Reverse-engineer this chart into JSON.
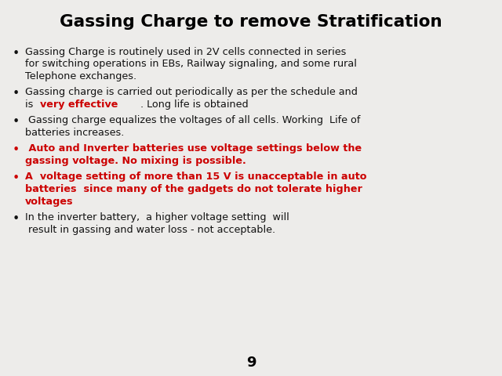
{
  "title": "Gassing Charge to remove Stratification",
  "background_color": "#edecea",
  "page_number": "9",
  "title_fontsize": 15.5,
  "body_fontsize": 9.2,
  "bullet_blocks": [
    {
      "bullet_color": "#111111",
      "lines": [
        [
          {
            "text": "Gassing Charge is routinely used in 2V cells connected in series",
            "color": "#111111",
            "bold": false
          }
        ],
        [
          {
            "text": "for switching operations in EBs, Railway signaling, and some rural",
            "color": "#111111",
            "bold": false
          }
        ],
        [
          {
            "text": "Telephone exchanges.",
            "color": "#111111",
            "bold": false
          }
        ]
      ]
    },
    {
      "bullet_color": "#111111",
      "lines": [
        [
          {
            "text": "Gassing charge is carried out periodically as per the schedule and",
            "color": "#111111",
            "bold": false
          }
        ],
        [
          {
            "text": "is ",
            "color": "#111111",
            "bold": false
          },
          {
            "text": "very effective",
            "color": "#cc0000",
            "bold": true
          },
          {
            "text": ". Long life is obtained",
            "color": "#111111",
            "bold": false
          }
        ]
      ]
    },
    {
      "bullet_color": "#111111",
      "lines": [
        [
          {
            "text": " Gassing charge equalizes the voltages of all cells. Working  Life of",
            "color": "#111111",
            "bold": false
          }
        ],
        [
          {
            "text": "batteries increases.",
            "color": "#111111",
            "bold": false
          }
        ]
      ]
    },
    {
      "bullet_color": "#cc0000",
      "lines": [
        [
          {
            "text": " Auto and Inverter batteries use voltage settings below the",
            "color": "#cc0000",
            "bold": true
          }
        ],
        [
          {
            "text": "gassing voltage. No mixing is possible.",
            "color": "#cc0000",
            "bold": true
          }
        ]
      ]
    },
    {
      "bullet_color": "#cc0000",
      "lines": [
        [
          {
            "text": "A  voltage setting of more than 15 V is unacceptable in auto",
            "color": "#cc0000",
            "bold": true
          }
        ],
        [
          {
            "text": "batteries  since many of the gadgets do not tolerate higher",
            "color": "#cc0000",
            "bold": true
          }
        ],
        [
          {
            "text": "voltages",
            "color": "#cc0000",
            "bold": true
          }
        ]
      ]
    },
    {
      "bullet_color": "#111111",
      "lines": [
        [
          {
            "text": "In the inverter battery,  a higher voltage setting  will",
            "color": "#111111",
            "bold": false
          }
        ],
        [
          {
            "text": " result in gassing and water loss - not acceptable.",
            "color": "#111111",
            "bold": false
          }
        ]
      ]
    }
  ]
}
